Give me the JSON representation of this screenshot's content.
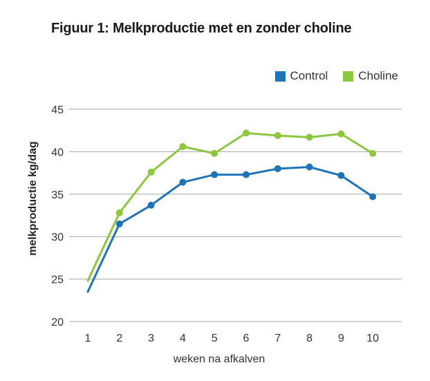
{
  "chart_data": {
    "type": "line",
    "title": "Figuur 1: Melkproductie met en zonder choline",
    "xlabel": "weken na afkalven",
    "ylabel": "melkproductie kg/dag",
    "categories": [
      "1",
      "2",
      "3",
      "4",
      "5",
      "6",
      "7",
      "8",
      "9",
      "10"
    ],
    "ylim": [
      20,
      45
    ],
    "yticks": [
      "20",
      "25",
      "30",
      "35",
      "40",
      "45"
    ],
    "grid": true,
    "legend_position": "top-right",
    "series": [
      {
        "name": "Control",
        "color": "#1f73b7",
        "values": [
          23.5,
          31.5,
          33.7,
          36.4,
          37.3,
          37.3,
          38.0,
          38.2,
          37.2,
          34.7
        ]
      },
      {
        "name": "Choline",
        "color": "#8dc63f",
        "values": [
          24.8,
          32.8,
          37.6,
          40.6,
          39.8,
          42.2,
          41.9,
          41.7,
          42.1,
          39.8
        ]
      }
    ]
  }
}
